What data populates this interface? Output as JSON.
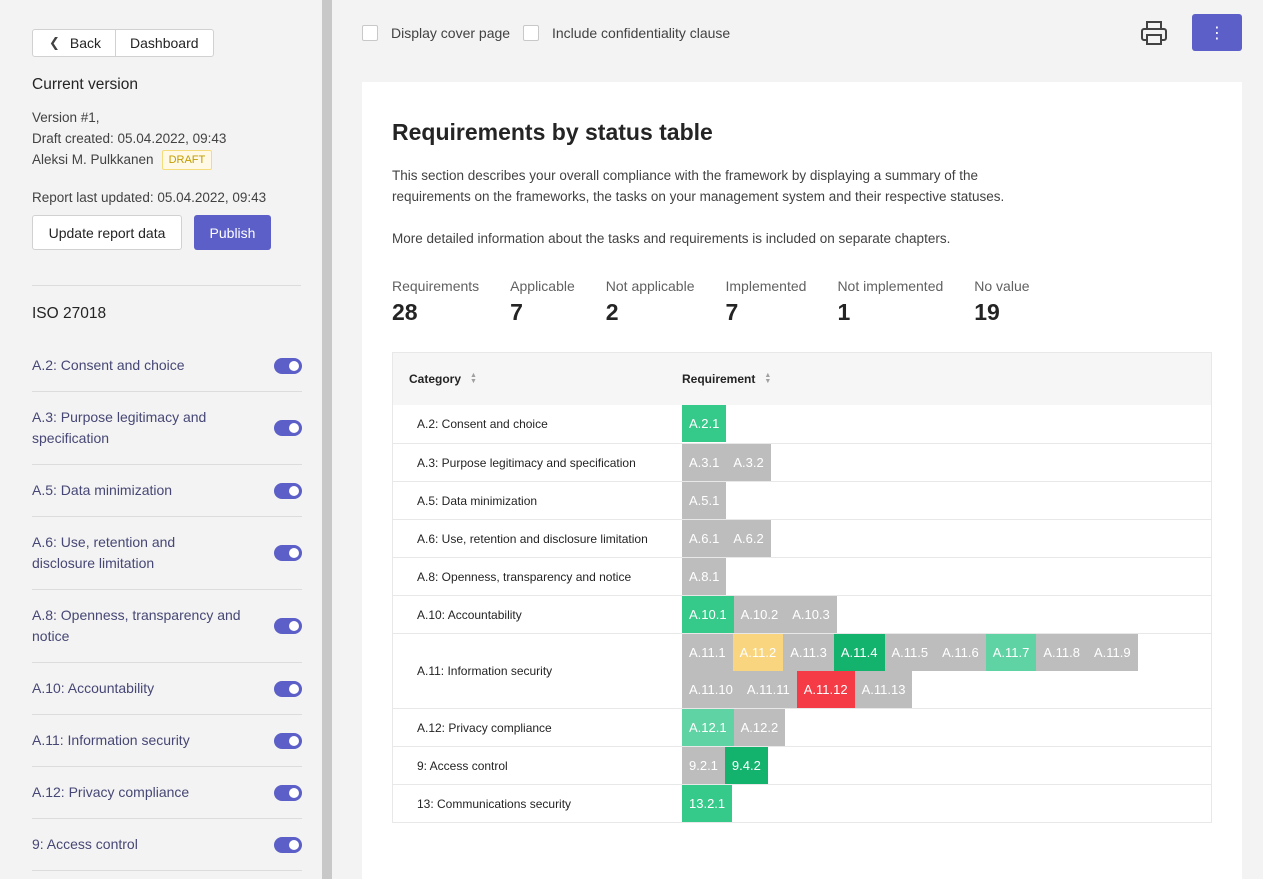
{
  "nav": {
    "back_label": "Back",
    "dashboard_label": "Dashboard"
  },
  "version": {
    "title": "Current version",
    "number": "Version #1,",
    "draft_created": "Draft created: 05.04.2022, 09:43",
    "author": "Aleksi M. Pulkkanen",
    "badge": "DRAFT",
    "last_updated": "Report last updated: 05.04.2022, 09:43",
    "update_label": "Update report data",
    "publish_label": "Publish"
  },
  "framework": {
    "title": "ISO 27018",
    "items": [
      {
        "label": "A.2: Consent and choice",
        "enabled": true
      },
      {
        "label": "A.3: Purpose legitimacy and specification",
        "enabled": true
      },
      {
        "label": "A.5: Data minimization",
        "enabled": true
      },
      {
        "label": "A.6: Use, retention and disclosure limitation",
        "enabled": true
      },
      {
        "label": "A.8: Openness, transparency and notice",
        "enabled": true
      },
      {
        "label": "A.10: Accountability",
        "enabled": true
      },
      {
        "label": "A.11: Information security",
        "enabled": true
      },
      {
        "label": "A.12: Privacy compliance",
        "enabled": true
      },
      {
        "label": "9: Access control",
        "enabled": true
      }
    ]
  },
  "options": {
    "cover_page": "Display cover page",
    "confidentiality": "Include confidentiality clause"
  },
  "report": {
    "title": "Requirements by status table",
    "desc1": "This section describes your overall compliance with the framework by displaying a summary of the requirements on the frameworks, the tasks on your management system and their respective statuses.",
    "desc2": "More detailed information about the tasks and requirements is included on separate chapters.",
    "stats": [
      {
        "label": "Requirements",
        "value": "28"
      },
      {
        "label": "Applicable",
        "value": "7"
      },
      {
        "label": "Not applicable",
        "value": "2"
      },
      {
        "label": "Implemented",
        "value": "7"
      },
      {
        "label": "Not implemented",
        "value": "1"
      },
      {
        "label": "No value",
        "value": "19"
      }
    ],
    "table": {
      "col_category": "Category",
      "col_requirement": "Requirement",
      "rows": [
        {
          "category": "A.2: Consent and choice",
          "reqs": [
            [
              "A.2.1",
              "green"
            ]
          ]
        },
        {
          "category": "A.3: Purpose legitimacy and specification",
          "reqs": [
            [
              "A.3.1",
              "gray"
            ],
            [
              "A.3.2",
              "gray"
            ]
          ]
        },
        {
          "category": "A.5: Data minimization",
          "reqs": [
            [
              "A.5.1",
              "gray"
            ]
          ]
        },
        {
          "category": "A.6: Use, retention and disclosure limitation",
          "reqs": [
            [
              "A.6.1",
              "gray"
            ],
            [
              "A.6.2",
              "gray"
            ]
          ]
        },
        {
          "category": "A.8: Openness, transparency and notice",
          "reqs": [
            [
              "A.8.1",
              "gray"
            ]
          ]
        },
        {
          "category": "A.10: Accountability",
          "reqs": [
            [
              "A.10.1",
              "green"
            ],
            [
              "A.10.2",
              "gray"
            ],
            [
              "A.10.3",
              "gray"
            ]
          ]
        },
        {
          "category": "A.11: Information security",
          "reqs": [
            [
              "A.11.1",
              "gray"
            ],
            [
              "A.11.2",
              "yellow"
            ],
            [
              "A.11.3",
              "gray"
            ],
            [
              "A.11.4",
              "dgreen"
            ],
            [
              "A.11.5",
              "gray"
            ],
            [
              "A.11.6",
              "gray"
            ],
            [
              "A.11.7",
              "lgreen"
            ],
            [
              "A.11.8",
              "gray"
            ],
            [
              "A.11.9",
              "gray"
            ],
            [
              "A.11.10",
              "gray"
            ],
            [
              "A.11.11",
              "gray"
            ],
            [
              "A.11.12",
              "red"
            ],
            [
              "A.11.13",
              "gray"
            ]
          ]
        },
        {
          "category": "A.12: Privacy compliance",
          "reqs": [
            [
              "A.12.1",
              "lgreen"
            ],
            [
              "A.12.2",
              "gray"
            ]
          ]
        },
        {
          "category": "9: Access control",
          "reqs": [
            [
              "9.2.1",
              "gray"
            ],
            [
              "9.4.2",
              "dgreen"
            ]
          ]
        },
        {
          "category": "13: Communications security",
          "reqs": [
            [
              "13.2.1",
              "green"
            ]
          ]
        }
      ]
    }
  },
  "colors": {
    "accent": "#5b5fc7",
    "link": "#464775"
  }
}
